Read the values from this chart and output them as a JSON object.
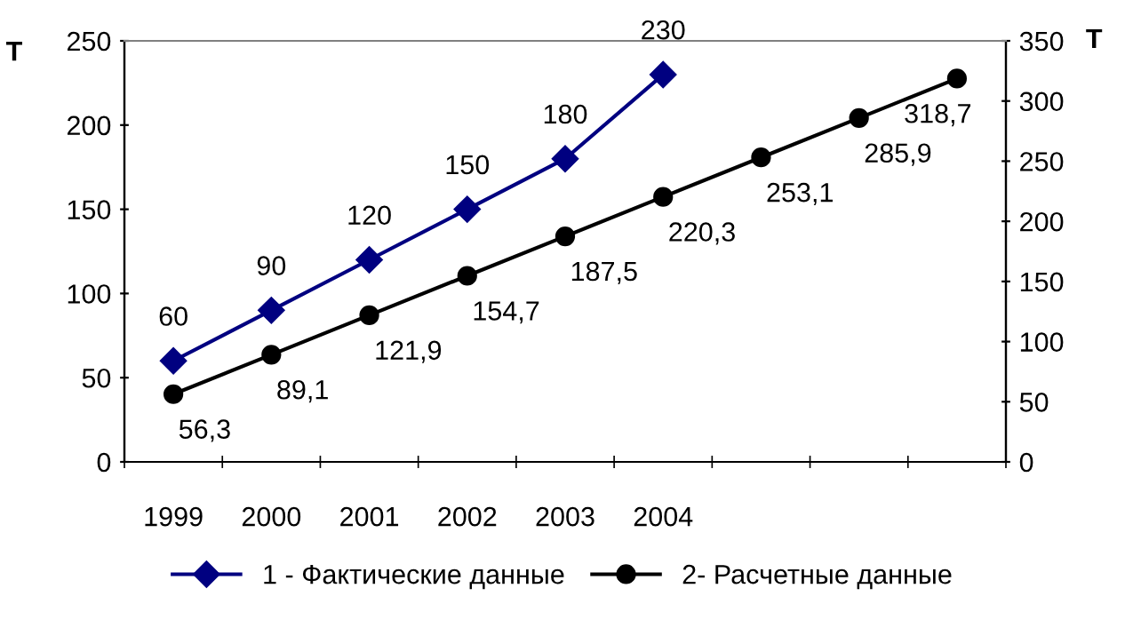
{
  "chart_data": {
    "type": "line",
    "categories": [
      "1999",
      "2000",
      "2001",
      "2002",
      "2003",
      "2004",
      null,
      null,
      null
    ],
    "ylabel": "Т",
    "y2label": "Т",
    "ylim": [
      0,
      250
    ],
    "yticks": [
      0,
      50,
      100,
      150,
      200,
      250
    ],
    "y2lim": [
      0,
      350
    ],
    "y2ticks": [
      0,
      50,
      100,
      150,
      200,
      250,
      300,
      350
    ],
    "legend": "bottom",
    "grid": false,
    "series": [
      {
        "name": "1 - Фактические данные",
        "color": "#000080",
        "marker": "diamond",
        "values": [
          60,
          90,
          120,
          150,
          180,
          230,
          null,
          null,
          null
        ],
        "value_labels": [
          "60",
          "90",
          "120",
          "150",
          "180",
          "230",
          null,
          null,
          null
        ]
      },
      {
        "name": "2- Расчетные данные",
        "color": "#000000",
        "marker": "circle",
        "axis": "y2",
        "values": [
          56.3,
          89.1,
          121.9,
          154.7,
          187.5,
          220.3,
          253.1,
          285.9,
          318.7
        ],
        "value_labels": [
          "56,3",
          "89,1",
          "121,9",
          "154,7",
          "187,5",
          "220,3",
          "253,1",
          "285,9",
          "318,7"
        ]
      }
    ]
  }
}
